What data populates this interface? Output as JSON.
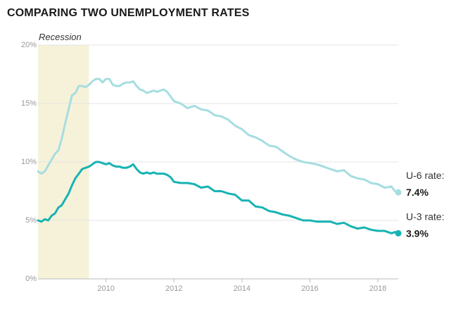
{
  "colors": {
    "u6": "#a6dde1",
    "u3": "#17b3b3",
    "recession": "#f6f2d9",
    "grid": "#e4e4e4",
    "axis": "#bbbbbb"
  },
  "chart_data": {
    "type": "line",
    "title": "COMPARING TWO UNEMPLOYMENT RATES",
    "xlabel": "",
    "ylabel": "",
    "xlim": [
      2008.0,
      2018.6
    ],
    "ylim": [
      0,
      20
    ],
    "y_ticks": [
      {
        "value": 0,
        "label": "0%"
      },
      {
        "value": 5,
        "label": "5%"
      },
      {
        "value": 10,
        "label": "10%"
      },
      {
        "value": 15,
        "label": "15%"
      },
      {
        "value": 20,
        "label": "20%"
      }
    ],
    "x_ticks": [
      {
        "value": 2010,
        "label": "2010"
      },
      {
        "value": 2012,
        "label": "2012"
      },
      {
        "value": 2014,
        "label": "2014"
      },
      {
        "value": 2016,
        "label": "2016"
      },
      {
        "value": 2018,
        "label": "2018"
      }
    ],
    "recession": {
      "label": "Recession",
      "start": 2008.0,
      "end": 2009.5
    },
    "series": [
      {
        "id": "u6",
        "name": "U-6 rate:",
        "last_label": "7.4%",
        "x": [
          2008.0,
          2008.1,
          2008.2,
          2008.3,
          2008.4,
          2008.5,
          2008.6,
          2008.7,
          2008.8,
          2008.9,
          2009.0,
          2009.1,
          2009.2,
          2009.3,
          2009.4,
          2009.5,
          2009.6,
          2009.7,
          2009.8,
          2009.9,
          2010.0,
          2010.1,
          2010.2,
          2010.3,
          2010.4,
          2010.5,
          2010.6,
          2010.7,
          2010.8,
          2010.9,
          2011.0,
          2011.1,
          2011.2,
          2011.3,
          2011.4,
          2011.5,
          2011.6,
          2011.7,
          2011.8,
          2011.9,
          2012.0,
          2012.2,
          2012.4,
          2012.6,
          2012.8,
          2013.0,
          2013.2,
          2013.4,
          2013.6,
          2013.8,
          2014.0,
          2014.2,
          2014.4,
          2014.6,
          2014.8,
          2015.0,
          2015.2,
          2015.4,
          2015.6,
          2015.8,
          2016.0,
          2016.2,
          2016.4,
          2016.6,
          2016.8,
          2017.0,
          2017.2,
          2017.4,
          2017.6,
          2017.8,
          2018.0,
          2018.2,
          2018.4,
          2018.5,
          2018.6
        ],
        "values": [
          9.2,
          9.0,
          9.2,
          9.7,
          10.2,
          10.7,
          11.0,
          12.0,
          13.3,
          14.5,
          15.7,
          15.9,
          16.5,
          16.5,
          16.4,
          16.6,
          16.9,
          17.1,
          17.1,
          16.8,
          17.1,
          17.1,
          16.6,
          16.5,
          16.5,
          16.7,
          16.8,
          16.8,
          16.9,
          16.5,
          16.2,
          16.1,
          15.9,
          16.0,
          16.1,
          16.0,
          16.1,
          16.2,
          16.0,
          15.6,
          15.2,
          15.0,
          14.6,
          14.8,
          14.5,
          14.4,
          14.0,
          13.9,
          13.6,
          13.1,
          12.8,
          12.3,
          12.1,
          11.8,
          11.4,
          11.3,
          10.9,
          10.5,
          10.2,
          10.0,
          9.9,
          9.8,
          9.6,
          9.4,
          9.2,
          9.3,
          8.8,
          8.6,
          8.5,
          8.2,
          8.1,
          7.8,
          7.9,
          7.5,
          7.4
        ]
      },
      {
        "id": "u3",
        "name": "U-3 rate:",
        "last_label": "3.9%",
        "x": [
          2008.0,
          2008.1,
          2008.2,
          2008.3,
          2008.4,
          2008.5,
          2008.6,
          2008.7,
          2008.8,
          2008.9,
          2009.0,
          2009.1,
          2009.2,
          2009.3,
          2009.4,
          2009.5,
          2009.6,
          2009.7,
          2009.8,
          2009.9,
          2010.0,
          2010.1,
          2010.2,
          2010.3,
          2010.4,
          2010.5,
          2010.6,
          2010.7,
          2010.8,
          2010.9,
          2011.0,
          2011.1,
          2011.2,
          2011.3,
          2011.4,
          2011.5,
          2011.6,
          2011.7,
          2011.8,
          2011.9,
          2012.0,
          2012.2,
          2012.4,
          2012.6,
          2012.8,
          2013.0,
          2013.2,
          2013.4,
          2013.6,
          2013.8,
          2014.0,
          2014.2,
          2014.4,
          2014.6,
          2014.8,
          2015.0,
          2015.2,
          2015.4,
          2015.6,
          2015.8,
          2016.0,
          2016.2,
          2016.4,
          2016.6,
          2016.8,
          2017.0,
          2017.2,
          2017.4,
          2017.6,
          2017.8,
          2018.0,
          2018.2,
          2018.4,
          2018.5,
          2018.6
        ],
        "values": [
          5.0,
          4.9,
          5.1,
          5.0,
          5.4,
          5.6,
          6.1,
          6.3,
          6.8,
          7.3,
          8.0,
          8.6,
          9.0,
          9.4,
          9.5,
          9.6,
          9.8,
          10.0,
          10.0,
          9.9,
          9.8,
          9.9,
          9.7,
          9.6,
          9.6,
          9.5,
          9.5,
          9.6,
          9.8,
          9.4,
          9.1,
          9.0,
          9.1,
          9.0,
          9.1,
          9.0,
          9.0,
          9.0,
          8.9,
          8.7,
          8.3,
          8.2,
          8.2,
          8.1,
          7.8,
          7.9,
          7.5,
          7.5,
          7.3,
          7.2,
          6.7,
          6.7,
          6.2,
          6.1,
          5.8,
          5.7,
          5.5,
          5.4,
          5.2,
          5.0,
          5.0,
          4.9,
          4.9,
          4.9,
          4.7,
          4.8,
          4.5,
          4.3,
          4.4,
          4.2,
          4.1,
          4.1,
          3.9,
          4.0,
          3.9
        ]
      }
    ]
  }
}
